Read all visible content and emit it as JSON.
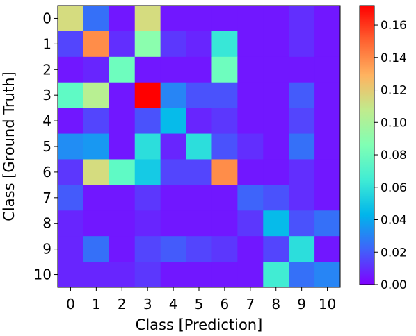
{
  "chart_data": {
    "type": "heatmap",
    "title": "",
    "xlabel": "Class [Prediction]",
    "ylabel": "Class [Ground Truth]",
    "x_categories": [
      "0",
      "1",
      "2",
      "3",
      "4",
      "5",
      "6",
      "7",
      "8",
      "9",
      "10"
    ],
    "y_categories": [
      "0",
      "1",
      "2",
      "3",
      "4",
      "5",
      "6",
      "7",
      "8",
      "9",
      "10"
    ],
    "colorscale": "rainbow",
    "vmin": 0.0,
    "vmax": 0.172,
    "colorbar_ticks": [
      "0.00",
      "0.02",
      "0.04",
      "0.06",
      "0.08",
      "0.10",
      "0.12",
      "0.14",
      "0.16"
    ],
    "colorbar_tick_values": [
      0.0,
      0.02,
      0.04,
      0.06,
      0.08,
      0.1,
      0.12,
      0.14,
      0.16
    ],
    "values": [
      [
        0.115,
        0.025,
        0.005,
        0.115,
        0.005,
        0.005,
        0.005,
        0.005,
        0.005,
        0.01,
        0.005
      ],
      [
        0.015,
        0.14,
        0.01,
        0.09,
        0.012,
        0.008,
        0.062,
        0.005,
        0.005,
        0.01,
        0.005
      ],
      [
        0.005,
        0.008,
        0.08,
        0.005,
        0.005,
        0.005,
        0.08,
        0.005,
        0.005,
        0.005,
        0.005
      ],
      [
        0.075,
        0.105,
        0.005,
        0.172,
        0.03,
        0.018,
        0.018,
        0.005,
        0.005,
        0.02,
        0.005
      ],
      [
        0.005,
        0.015,
        0.005,
        0.018,
        0.045,
        0.008,
        0.012,
        0.005,
        0.005,
        0.015,
        0.005
      ],
      [
        0.032,
        0.035,
        0.005,
        0.058,
        0.008,
        0.058,
        0.018,
        0.01,
        0.005,
        0.025,
        0.005
      ],
      [
        0.012,
        0.115,
        0.075,
        0.05,
        0.015,
        0.015,
        0.14,
        0.005,
        0.005,
        0.01,
        0.005
      ],
      [
        0.02,
        0.005,
        0.005,
        0.012,
        0.005,
        0.005,
        0.005,
        0.022,
        0.018,
        0.01,
        0.005
      ],
      [
        0.008,
        0.005,
        0.005,
        0.008,
        0.005,
        0.005,
        0.005,
        0.012,
        0.045,
        0.018,
        0.025
      ],
      [
        0.008,
        0.025,
        0.005,
        0.015,
        0.02,
        0.015,
        0.012,
        0.005,
        0.015,
        0.058,
        0.005
      ],
      [
        0.008,
        0.008,
        0.008,
        0.012,
        0.005,
        0.005,
        0.005,
        0.005,
        0.065,
        0.025,
        0.03
      ]
    ]
  }
}
